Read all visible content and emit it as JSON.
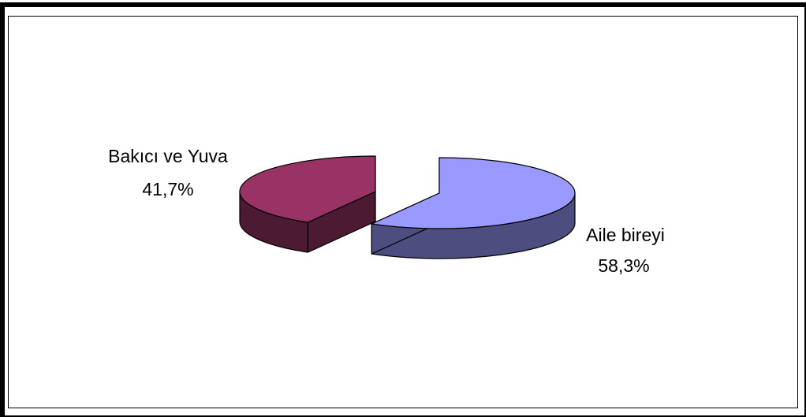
{
  "chart_data": {
    "type": "pie",
    "variant": "3d-exploded",
    "categories": [
      "Bakıcı ve Yuva",
      "Aile bireyi"
    ],
    "values": [
      41.7,
      58.3
    ],
    "labels": [
      "41,7%",
      "58,3%"
    ],
    "colors": {
      "Bakıcı ve Yuva": {
        "top": "#993366",
        "side": "#4d1a33"
      },
      "Aile bireyi": {
        "top": "#9999ff",
        "side": "#4d4d80"
      }
    },
    "legend": "none",
    "title": ""
  }
}
